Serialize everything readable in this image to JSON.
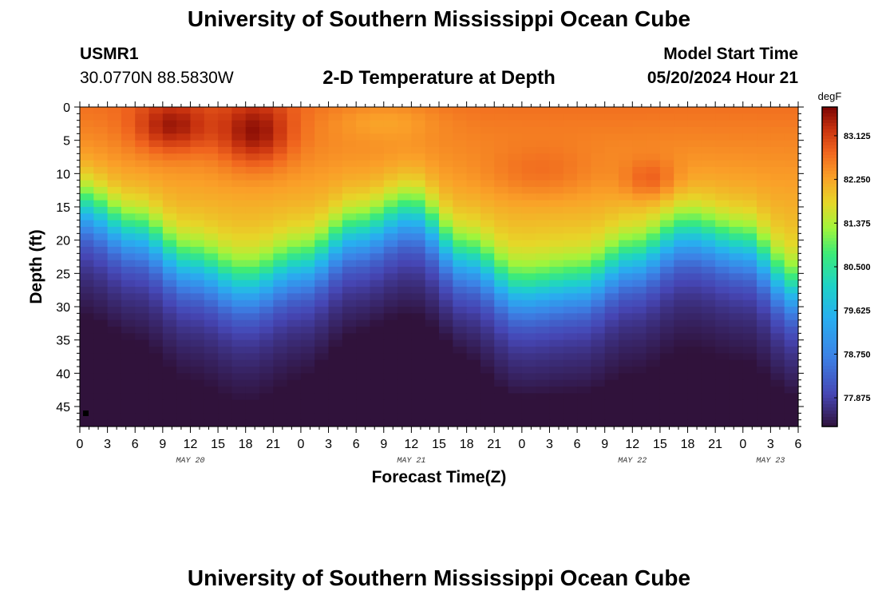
{
  "header": {
    "title": "University of Southern Mississippi Ocean Cube",
    "station": "USMR1",
    "coords": "30.0770N  88.5830W",
    "subtitle": "2-D Temperature at Depth",
    "model_label": "Model Start Time",
    "model_time": "05/20/2024 Hour 21"
  },
  "footer": {
    "title": "University of Southern Mississippi Ocean Cube"
  },
  "chart_data": {
    "type": "heatmap",
    "title": "2-D Temperature at Depth",
    "xlabel": "Forecast Time(Z)",
    "ylabel": "Depth (ft)",
    "colorbar_unit": "degF",
    "colorbar_ticks": [
      "83.125",
      "82.250",
      "81.375",
      "80.500",
      "79.625",
      "78.750",
      "77.875"
    ],
    "colorbar_range": [
      77.3,
      83.7
    ],
    "ylim": [
      0,
      48
    ],
    "y_ticks": [
      0,
      5,
      10,
      15,
      20,
      25,
      30,
      35,
      40,
      45
    ],
    "x_hours_range": [
      0,
      78
    ],
    "x_tick_labels": [
      "0",
      "3",
      "6",
      "9",
      "12",
      "15",
      "18",
      "21",
      "0",
      "3",
      "6",
      "9",
      "12",
      "15",
      "18",
      "21",
      "0",
      "3",
      "6",
      "9",
      "12",
      "15",
      "18",
      "21",
      "0",
      "3",
      "6"
    ],
    "date_labels": [
      {
        "label": "MAY 20",
        "hour": 12
      },
      {
        "label": "MAY 21",
        "hour": 36
      },
      {
        "label": "MAY 22",
        "hour": 60
      },
      {
        "label": "MAY 23",
        "hour": 75
      }
    ],
    "thermocline_depth_ft": {
      "hours": [
        0,
        6,
        12,
        18,
        24,
        30,
        36,
        42,
        48,
        54,
        60,
        66,
        72,
        78
      ],
      "values": [
        15,
        19,
        24,
        27,
        24,
        19,
        16,
        23,
        28,
        27,
        23,
        19,
        21,
        28
      ]
    },
    "surface_temp_degF": 82.7,
    "bottom_temp_degF": 78.0
  }
}
